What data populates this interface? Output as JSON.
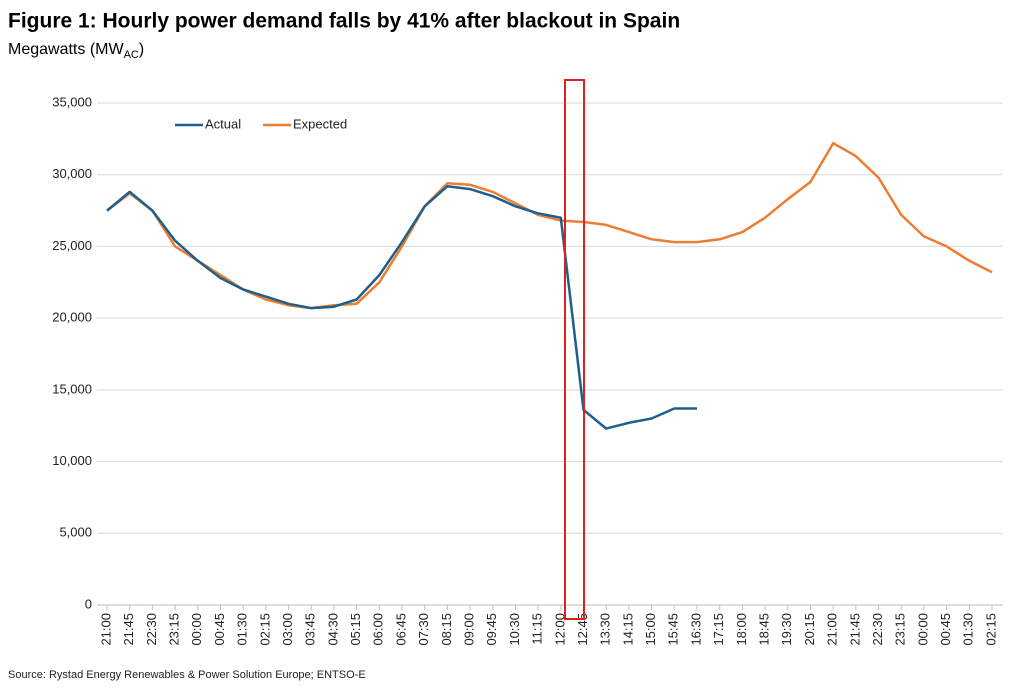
{
  "chart_data": {
    "type": "line",
    "title": "Figure 1: Hourly power demand falls by 41% after blackout in Spain",
    "subtitle": {
      "text": "Megawatts (MW",
      "sub": "AC",
      "suffix": ")"
    },
    "source": "Source: Rystad Energy Renewables & Power Solution Europe; ENTSO-E",
    "categories": [
      "21:00",
      "21:45",
      "22:30",
      "23:15",
      "00:00",
      "00:45",
      "01:30",
      "02:15",
      "03:00",
      "03:45",
      "04:30",
      "05:15",
      "06:00",
      "06:45",
      "07:30",
      "08:15",
      "09:00",
      "09:45",
      "10:30",
      "11:15",
      "12:00",
      "12:45",
      "13:30",
      "14:15",
      "15:00",
      "15:45",
      "16:30",
      "17:15",
      "18:00",
      "18:45",
      "19:30",
      "20:15",
      "21:00",
      "21:45",
      "22:30",
      "23:15",
      "00:00",
      "00:45",
      "01:30",
      "02:15"
    ],
    "series": [
      {
        "name": "Actual",
        "color": "#1f5f8b",
        "values": [
          27500,
          28800,
          27500,
          25400,
          24000,
          22800,
          22000,
          21500,
          21000,
          20700,
          20800,
          21300,
          23000,
          25300,
          27800,
          29200,
          29000,
          28500,
          27800,
          27300,
          27000,
          13600,
          12300,
          12700,
          13000,
          13700,
          13700,
          null,
          null,
          null,
          null,
          null,
          null,
          null,
          null,
          null,
          null,
          null,
          null,
          null
        ]
      },
      {
        "name": "Expected",
        "color": "#ed7d31",
        "values": [
          27500,
          28700,
          27500,
          25000,
          24000,
          23000,
          22000,
          21300,
          20900,
          20700,
          20900,
          21000,
          22500,
          25000,
          27800,
          29400,
          29300,
          28800,
          28000,
          27200,
          26800,
          26700,
          26500,
          26000,
          25500,
          25300,
          25300,
          25500,
          26000,
          27000,
          28300,
          29500,
          32200,
          31300,
          29800,
          27200,
          25700,
          25000,
          24000,
          23200
        ]
      }
    ],
    "ylim": [
      0,
      35000
    ],
    "yticks": [
      {
        "value": 0,
        "label": "0"
      },
      {
        "value": 5000,
        "label": "5,000"
      },
      {
        "value": 10000,
        "label": "10,000"
      },
      {
        "value": 15000,
        "label": "15,000"
      },
      {
        "value": 20000,
        "label": "20,000"
      },
      {
        "value": 25000,
        "label": "25,000"
      },
      {
        "value": 30000,
        "label": "30,000"
      },
      {
        "value": 35000,
        "label": "35,000"
      }
    ],
    "grid": true,
    "legend": "top-left"
  }
}
